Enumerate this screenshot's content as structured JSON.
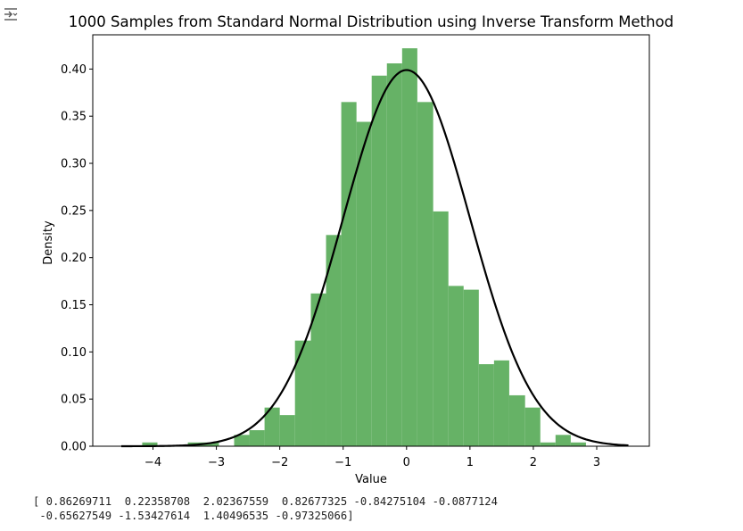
{
  "output_icon": "output-redirect-icon",
  "colors": {
    "bars": "#66b266",
    "curve": "#000000",
    "frame": "#000000",
    "background": "#ffffff"
  },
  "chart_data": {
    "type": "bar",
    "title": "1000 Samples from Standard Normal Distribution using Inverse Transform Method",
    "xlabel": "Value",
    "ylabel": "Density",
    "xlim": [
      -4.95,
      3.83
    ],
    "ylim": [
      0,
      0.4363
    ],
    "xticks": [
      -4,
      -3,
      -2,
      -1,
      0,
      1,
      2,
      3
    ],
    "yticks": [
      0.0,
      0.05,
      0.1,
      0.15,
      0.2,
      0.25,
      0.3,
      0.35,
      0.4
    ],
    "ytick_labels": [
      "0.00",
      "0.05",
      "0.10",
      "0.15",
      "0.20",
      "0.25",
      "0.30",
      "0.35",
      "0.40"
    ],
    "grid": false,
    "legend": "none",
    "histogram": {
      "bin_edges": [
        -4.17,
        -3.93,
        -3.69,
        -3.45,
        -3.21,
        -2.96,
        -2.72,
        -2.48,
        -2.24,
        -2.0,
        -1.76,
        -1.51,
        -1.27,
        -1.03,
        -0.79,
        -0.55,
        -0.31,
        -0.07,
        0.17,
        0.42,
        0.66,
        0.9,
        1.14,
        1.38,
        1.62,
        1.87,
        2.11,
        2.35,
        2.59,
        2.83,
        3.07
      ],
      "densities": [
        0.004,
        0.0,
        0.0,
        0.004,
        0.004,
        0.0,
        0.012,
        0.017,
        0.041,
        0.033,
        0.112,
        0.162,
        0.224,
        0.365,
        0.344,
        0.393,
        0.406,
        0.422,
        0.365,
        0.249,
        0.17,
        0.166,
        0.087,
        0.091,
        0.054,
        0.041,
        0.004,
        0.012,
        0.004,
        0.0
      ]
    },
    "curve": {
      "name": "Standard normal PDF",
      "x_range": [
        -4.5,
        3.5
      ],
      "mean": 0,
      "std": 1
    }
  },
  "console_output": {
    "lines": [
      "[ 0.86269711  0.22358708  2.02367559  0.82677325 -0.84275104 -0.0877124",
      " -0.65627549 -1.53427614  1.40496535 -0.97325066]"
    ]
  }
}
